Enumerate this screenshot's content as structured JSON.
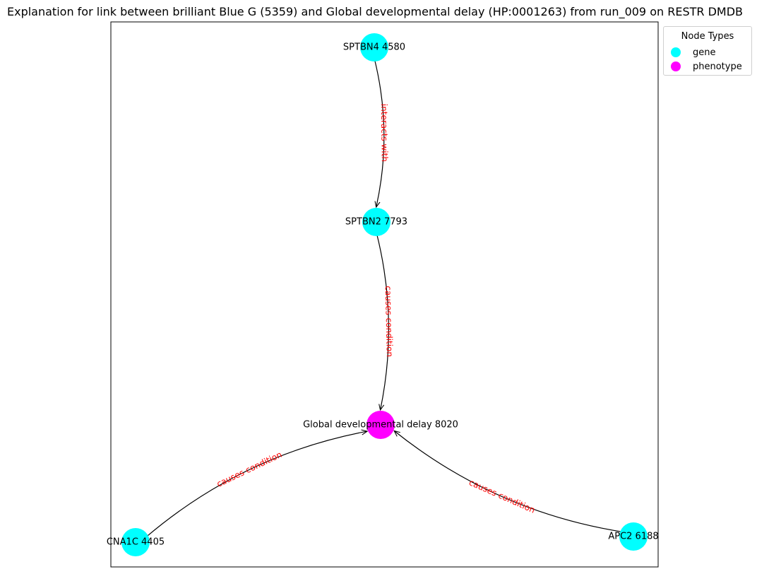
{
  "title": "Explanation for link between brilliant Blue G (5359) and Global developmental delay (HP:0001263) from run_009 on RESTR DMDB",
  "colors": {
    "gene": "#00ffff",
    "phenotype": "#ff00ff",
    "edge": "#000000",
    "edge_label": "#ff0000"
  },
  "legend": {
    "title": "Node Types",
    "items": [
      {
        "label": "gene",
        "type": "gene"
      },
      {
        "label": "phenotype",
        "type": "phenotype"
      }
    ]
  },
  "nodes": [
    {
      "id": "SPTBN4",
      "label": "SPTBN4 4580",
      "type": "gene"
    },
    {
      "id": "SPTBN2",
      "label": "SPTBN2 7793",
      "type": "gene"
    },
    {
      "id": "GDD",
      "label": "Global developmental delay 8020",
      "type": "phenotype"
    },
    {
      "id": "CACNA1C",
      "label": "CNA1C 4405",
      "type": "gene"
    },
    {
      "id": "APC2",
      "label": "APC2 6188",
      "type": "gene"
    }
  ],
  "edges": [
    {
      "from": "SPTBN4",
      "to": "SPTBN2",
      "label": "interacts with"
    },
    {
      "from": "SPTBN2",
      "to": "GDD",
      "label": "causes condition"
    },
    {
      "from": "CACNA1C",
      "to": "GDD",
      "label": "causes condition"
    },
    {
      "from": "APC2",
      "to": "GDD",
      "label": "causes condition"
    }
  ]
}
